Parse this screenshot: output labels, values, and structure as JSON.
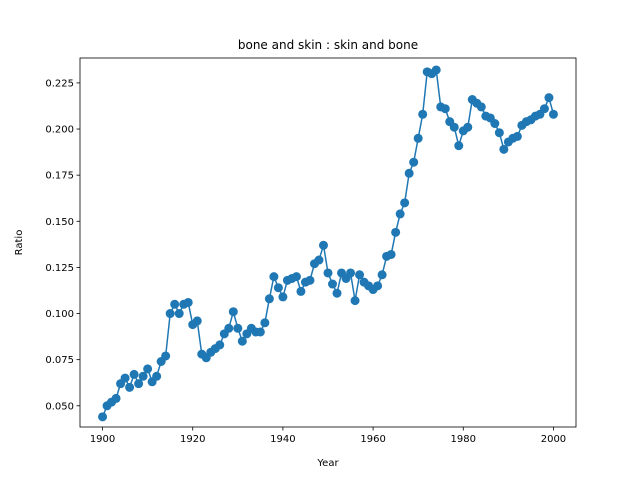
{
  "chart_data": {
    "type": "line",
    "title": "bone and skin : skin and bone",
    "xlabel": "Year",
    "ylabel": "Ratio",
    "xlim": [
      1895,
      2005
    ],
    "ylim": [
      0.0385,
      0.2385
    ],
    "xticks": [
      1900,
      1920,
      1940,
      1960,
      1980,
      2000
    ],
    "yticks": [
      0.05,
      0.075,
      0.1,
      0.125,
      0.15,
      0.175,
      0.2,
      0.225
    ],
    "ytick_labels": [
      "0.050",
      "0.075",
      "0.100",
      "0.125",
      "0.150",
      "0.175",
      "0.200",
      "0.225"
    ],
    "grid": false,
    "series_color": "#1f77b4",
    "series": [
      {
        "x": [
          1900,
          1901,
          1902,
          1903,
          1904,
          1905,
          1906,
          1907,
          1908,
          1909,
          1910,
          1911,
          1912,
          1913,
          1914,
          1915,
          1916,
          1917,
          1918,
          1919,
          1920,
          1921,
          1922,
          1923,
          1924,
          1925,
          1926,
          1927,
          1928,
          1929,
          1930,
          1931,
          1932,
          1933,
          1934,
          1935,
          1936,
          1937,
          1938,
          1939,
          1940,
          1941,
          1942,
          1943,
          1944,
          1945,
          1946,
          1947,
          1948,
          1949,
          1950,
          1951,
          1952,
          1953,
          1954,
          1955,
          1956,
          1957,
          1958,
          1959,
          1960,
          1961,
          1962,
          1963,
          1964,
          1965,
          1966,
          1967,
          1968,
          1969,
          1970,
          1971,
          1972,
          1973,
          1974,
          1975,
          1976,
          1977,
          1978,
          1979,
          1980,
          1981,
          1982,
          1983,
          1984,
          1985,
          1986,
          1987,
          1988,
          1989,
          1990,
          1991,
          1992,
          1993,
          1994,
          1995,
          1996,
          1997,
          1998,
          1999,
          2000
        ],
        "y": [
          0.044,
          0.05,
          0.052,
          0.054,
          0.062,
          0.065,
          0.06,
          0.067,
          0.062,
          0.066,
          0.07,
          0.063,
          0.066,
          0.074,
          0.077,
          0.1,
          0.105,
          0.1,
          0.105,
          0.106,
          0.094,
          0.096,
          0.078,
          0.076,
          0.079,
          0.081,
          0.083,
          0.089,
          0.092,
          0.101,
          0.092,
          0.085,
          0.089,
          0.092,
          0.09,
          0.09,
          0.095,
          0.108,
          0.12,
          0.114,
          0.109,
          0.118,
          0.119,
          0.12,
          0.112,
          0.117,
          0.118,
          0.127,
          0.129,
          0.137,
          0.122,
          0.116,
          0.111,
          0.122,
          0.119,
          0.122,
          0.107,
          0.121,
          0.117,
          0.115,
          0.113,
          0.115,
          0.121,
          0.131,
          0.132,
          0.144,
          0.154,
          0.16,
          0.176,
          0.182,
          0.195,
          0.208,
          0.231,
          0.23,
          0.232,
          0.212,
          0.211,
          0.204,
          0.201,
          0.191,
          0.199,
          0.201,
          0.216,
          0.214,
          0.212,
          0.207,
          0.206,
          0.203,
          0.198,
          0.189,
          0.193,
          0.195,
          0.196,
          0.202,
          0.204,
          0.205,
          0.207,
          0.208,
          0.211,
          0.217,
          0.208
        ]
      }
    ]
  }
}
